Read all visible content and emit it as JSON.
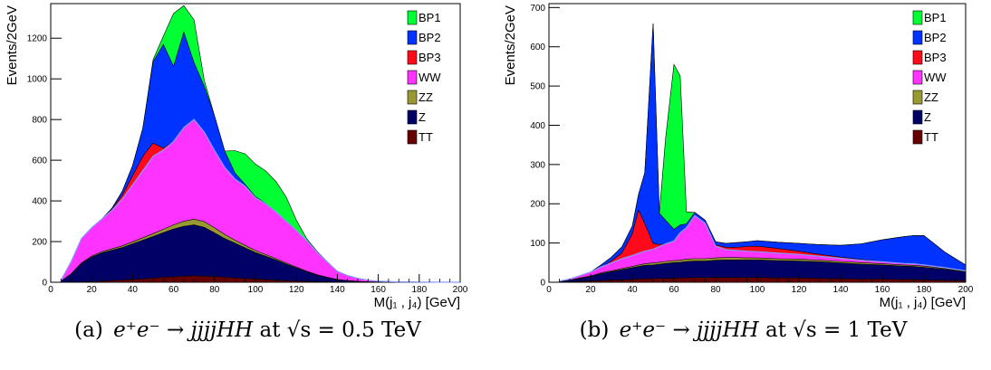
{
  "colors": {
    "BP1": "#00ff33",
    "BP2": "#0033ff",
    "BP3": "#ff0a1a",
    "WW": "#ff33ff",
    "ZZ": "#999933",
    "Z": "#000066",
    "TT": "#660000",
    "wwline": "#8899ff"
  },
  "panels": [
    {
      "caption": {
        "label": "(a)",
        "process": "e⁺e⁻ → jjjjHH",
        "energy": "at √s = 0.5 TeV"
      },
      "chart_data": {
        "type": "area",
        "stacked": true,
        "xlabel": "M(j₁ , j₄) [GeV]",
        "ylabel": "Events/2GeV",
        "xlim": [
          0,
          200
        ],
        "ylim": [
          0,
          1370
        ],
        "xticks": [
          0,
          20,
          40,
          60,
          80,
          100,
          120,
          140,
          160,
          180,
          200
        ],
        "yticks": [
          0,
          200,
          400,
          600,
          800,
          1000,
          1200
        ],
        "legend": [
          "BP1",
          "BP2",
          "BP3",
          "WW",
          "ZZ",
          "Z",
          "TT"
        ],
        "legend_placement": "top-right",
        "x": [
          5,
          10,
          15,
          20,
          25,
          30,
          35,
          40,
          45,
          50,
          55,
          60,
          65,
          70,
          75,
          80,
          85,
          90,
          95,
          100,
          105,
          110,
          115,
          120,
          125,
          130,
          135,
          140,
          145,
          150,
          155,
          160,
          170,
          180,
          200
        ],
        "series": [
          {
            "name": "TT",
            "values": [
              0,
              0,
              1,
              3,
              5,
              8,
              11,
              14,
              17,
              20,
              24,
              27,
              30,
              32,
              30,
              28,
              25,
              22,
              19,
              16,
              13,
              10,
              8,
              6,
              4,
              3,
              2,
              1,
              1,
              0,
              0,
              0,
              0,
              0,
              0
            ]
          },
          {
            "name": "Z",
            "values": [
              5,
              40,
              90,
              120,
              140,
              150,
              160,
              175,
              190,
              205,
              220,
              235,
              245,
              250,
              240,
              215,
              190,
              170,
              150,
              130,
              115,
              100,
              82,
              65,
              48,
              33,
              22,
              12,
              7,
              4,
              2,
              1,
              0,
              0,
              0
            ]
          },
          {
            "name": "ZZ",
            "values": [
              0,
              2,
              4,
              5,
              6,
              7,
              8,
              10,
              12,
              14,
              16,
              20,
              25,
              28,
              28,
              25,
              20,
              15,
              12,
              10,
              8,
              6,
              5,
              4,
              3,
              2,
              1,
              1,
              0,
              0,
              0,
              0,
              0,
              0,
              0
            ]
          },
          {
            "name": "WW",
            "values": [
              5,
              60,
              120,
              140,
              160,
              190,
              230,
              280,
              330,
              380,
              390,
              410,
              460,
              490,
              440,
              380,
              330,
              300,
              290,
              260,
              250,
              230,
              205,
              180,
              150,
              110,
              75,
              40,
              25,
              15,
              8,
              4,
              2,
              1,
              0
            ]
          },
          {
            "name": "BP3",
            "values": [
              0,
              0,
              0,
              0,
              0,
              5,
              20,
              45,
              70,
              65,
              10,
              0,
              0,
              0,
              0,
              0,
              0,
              0,
              0,
              0,
              0,
              0,
              0,
              0,
              0,
              0,
              0,
              0,
              0,
              0,
              0,
              0,
              0,
              0,
              0
            ]
          },
          {
            "name": "BP2",
            "values": [
              0,
              0,
              0,
              0,
              0,
              5,
              20,
              50,
              140,
              400,
              510,
              370,
              470,
              280,
              225,
              170,
              80,
              30,
              10,
              5,
              2,
              0,
              0,
              0,
              0,
              0,
              0,
              0,
              0,
              0,
              0,
              0,
              0,
              0,
              0
            ]
          },
          {
            "name": "BP1",
            "values": [
              0,
              0,
              0,
              0,
              0,
              0,
              0,
              0,
              0,
              10,
              40,
              260,
              130,
              210,
              30,
              0,
              0,
              110,
              150,
              160,
              160,
              150,
              120,
              50,
              10,
              5,
              2,
              0,
              0,
              0,
              0,
              0,
              0,
              0,
              0
            ]
          }
        ]
      }
    },
    {
      "caption": {
        "label": "(b)",
        "process": "e⁺e⁻ → jjjjHH",
        "energy": "at √s = 1 TeV"
      },
      "chart_data": {
        "type": "area",
        "stacked": true,
        "xlabel": "M(j₁ , j₄) [GeV]",
        "ylabel": "Events/2GeV",
        "xlim": [
          0,
          200
        ],
        "ylim": [
          0,
          710
        ],
        "xticks": [
          0,
          20,
          40,
          60,
          80,
          100,
          120,
          140,
          160,
          180,
          200
        ],
        "yticks": [
          0,
          100,
          200,
          300,
          400,
          500,
          600,
          700
        ],
        "legend": [
          "BP1",
          "BP2",
          "BP3",
          "WW",
          "ZZ",
          "Z",
          "TT"
        ],
        "legend_placement": "top-right",
        "x": [
          5,
          10,
          15,
          20,
          25,
          30,
          35,
          40,
          43,
          46,
          50,
          53,
          56,
          60,
          63,
          66,
          70,
          75,
          80,
          85,
          90,
          95,
          100,
          110,
          120,
          130,
          140,
          150,
          160,
          170,
          175,
          180,
          190,
          200
        ],
        "series": [
          {
            "name": "TT",
            "values": [
              0,
              1,
              2,
              3,
              4,
              5,
              6,
              7,
              8,
              9,
              9,
              10,
              10,
              10,
              11,
              11,
              12,
              12,
              12,
              12,
              12,
              12,
              12,
              11,
              11,
              10,
              9,
              8,
              8,
              7,
              7,
              6,
              5,
              4
            ]
          },
          {
            "name": "Z",
            "values": [
              2,
              4,
              8,
              12,
              18,
              22,
              26,
              30,
              32,
              34,
              35,
              36,
              38,
              40,
              40,
              42,
              42,
              42,
              44,
              45,
              45,
              45,
              45,
              44,
              43,
              42,
              40,
              38,
              36,
              34,
              33,
              32,
              28,
              22
            ]
          },
          {
            "name": "ZZ",
            "values": [
              0,
              0,
              1,
              1,
              2,
              2,
              3,
              3,
              4,
              4,
              5,
              5,
              5,
              5,
              5,
              6,
              6,
              6,
              6,
              6,
              6,
              5,
              5,
              5,
              5,
              4,
              4,
              4,
              3,
              3,
              3,
              3,
              2,
              2
            ]
          },
          {
            "name": "WW",
            "values": [
              1,
              3,
              6,
              10,
              15,
              20,
              25,
              28,
              30,
              32,
              35,
              40,
              45,
              50,
              70,
              80,
              110,
              90,
              30,
              20,
              18,
              17,
              16,
              14,
              12,
              10,
              8,
              6,
              5,
              4,
              4,
              3,
              2,
              1
            ]
          },
          {
            "name": "BP3",
            "values": [
              0,
              0,
              0,
              0,
              0,
              5,
              15,
              55,
              110,
              70,
              15,
              5,
              0,
              0,
              0,
              0,
              0,
              0,
              3,
              6,
              8,
              12,
              14,
              12,
              8,
              5,
              3,
              2,
              1,
              0,
              0,
              0,
              0,
              0
            ]
          },
          {
            "name": "BP2",
            "values": [
              0,
              0,
              0,
              0,
              5,
              10,
              15,
              20,
              40,
              130,
              560,
              80,
              60,
              30,
              20,
              10,
              8,
              8,
              8,
              10,
              12,
              12,
              14,
              16,
              20,
              25,
              30,
              40,
              55,
              68,
              72,
              75,
              40,
              15
            ]
          },
          {
            "name": "BP1",
            "values": [
              0,
              0,
              0,
              0,
              0,
              0,
              0,
              0,
              0,
              0,
              0,
              0,
              210,
              420,
              380,
              30,
              0,
              0,
              0,
              0,
              0,
              0,
              0,
              0,
              0,
              0,
              0,
              0,
              0,
              0,
              0,
              0,
              0,
              0
            ]
          }
        ]
      }
    }
  ]
}
